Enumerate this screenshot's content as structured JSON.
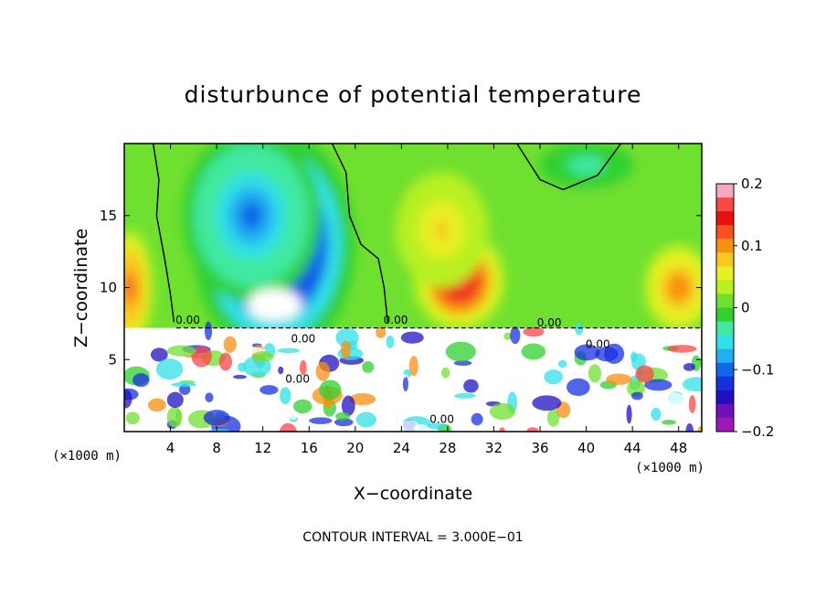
{
  "chart_data": {
    "type": "heatmap",
    "title": "disturbunce of potential temperature",
    "xlabel": "X−coordinate",
    "ylabel": "Z−coordinate",
    "x_unit": "(×1000 m)",
    "y_unit": "(×1000 m)",
    "xlim": [
      0,
      50
    ],
    "ylim": [
      0,
      20
    ],
    "x_ticks": [
      4,
      8,
      12,
      16,
      20,
      24,
      28,
      32,
      36,
      40,
      44,
      48
    ],
    "x_tick_labels": [
      "4",
      "8",
      "12",
      "16",
      "20",
      "24",
      "28",
      "32",
      "36",
      "40",
      "44",
      "48"
    ],
    "y_ticks": [
      5,
      10,
      15
    ],
    "y_tick_labels": [
      "5",
      "10",
      "15"
    ],
    "colorbar": {
      "min": -0.2,
      "max": 0.2,
      "ticks": [
        0.2,
        0.1,
        0,
        -0.1,
        -0.2
      ],
      "tick_labels": [
        "0.2",
        "0.1",
        "0",
        "−0.1",
        "−0.2"
      ],
      "colors": [
        "#f8a8c0",
        "#f84848",
        "#e81010",
        "#f85020",
        "#f89010",
        "#f8c820",
        "#e8f020",
        "#b8f020",
        "#70e030",
        "#30d030",
        "#40e8a0",
        "#30e0e8",
        "#20b0f0",
        "#1068e8",
        "#1830e0",
        "#2010c0",
        "#7010b8",
        "#a018b8"
      ]
    },
    "contour_labels": [
      "0.00",
      "0.00",
      "0.00",
      "0.00",
      "0.00",
      "0.00",
      "0.00"
    ],
    "features": [
      {
        "sign": "negative",
        "x": 13,
        "z": 13,
        "rx": 7,
        "rz": 8,
        "amp": -0.2
      },
      {
        "sign": "negative",
        "x": 11,
        "z": 15,
        "rx": 6,
        "rz": 6,
        "amp": -0.1
      },
      {
        "sign": "negative",
        "x": 40,
        "z": 18.5,
        "rx": 5,
        "rz": 2,
        "amp": -0.04
      },
      {
        "sign": "positive",
        "x": 29,
        "z": 10.5,
        "rx": 4,
        "rz": 3.5,
        "amp": 0.17
      },
      {
        "sign": "positive",
        "x": 27.5,
        "z": 14,
        "rx": 4,
        "rz": 4,
        "amp": 0.07
      },
      {
        "sign": "positive",
        "x": 0.5,
        "z": 10,
        "rx": 2,
        "rz": 4,
        "amp": 0.12
      },
      {
        "sign": "positive",
        "x": 48,
        "z": 10,
        "rx": 3,
        "rz": 3,
        "amp": 0.11
      }
    ],
    "background_value": 0.015,
    "undefined_region": {
      "z_below": 7.2
    },
    "footnote": "CONTOUR INTERVAL = 3.000E−01",
    "legend": "colorbar-right",
    "grid": false
  }
}
